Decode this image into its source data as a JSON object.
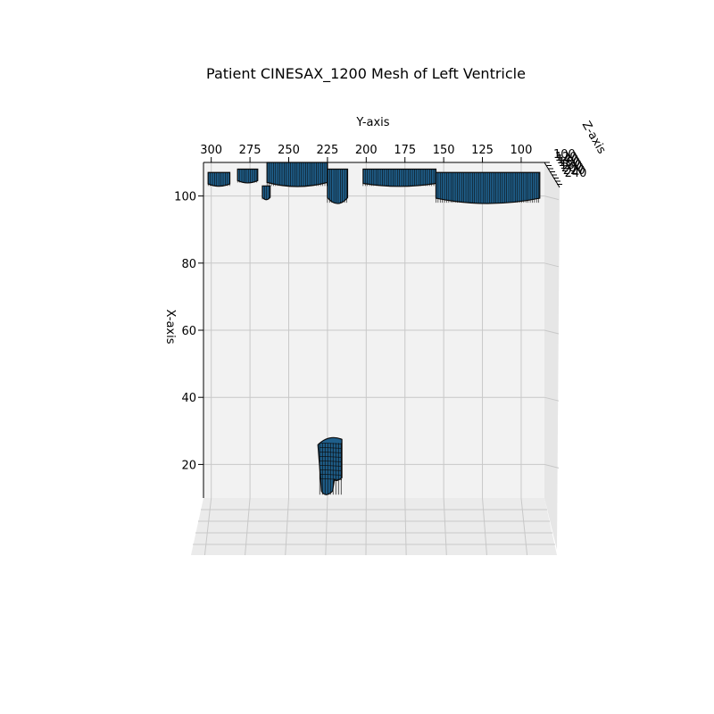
{
  "chart_data": {
    "type": "surface3d",
    "title": "Patient CINESAX_1200 Mesh of Left Ventricle",
    "xlabel": "X-axis",
    "ylabel": "Y-axis",
    "zlabel": "Z-axis",
    "x_ticks": [
      "20",
      "40",
      "60",
      "80",
      "100"
    ],
    "y_ticks": [
      "300",
      "275",
      "250",
      "225",
      "200",
      "175",
      "150",
      "125",
      "100"
    ],
    "z_ticks": [
      "100",
      "120",
      "140",
      "160",
      "180",
      "200",
      "220",
      "240"
    ],
    "x_range": [
      10,
      110
    ],
    "y_range": [
      85,
      305
    ],
    "grid": true,
    "colors": {
      "mesh_face": "#1f5f8b",
      "mesh_edge": "#0a0a0a",
      "pane": "#f2f2f2",
      "grid": "#c8c8c8"
    },
    "mesh_segments": [
      {
        "kind": "top-band",
        "y": [
          302,
          288
        ],
        "x_top": 107,
        "x_bottom": 103
      },
      {
        "kind": "top-band",
        "y": [
          283,
          270
        ],
        "x_top": 108,
        "x_bottom": 104
      },
      {
        "kind": "top-band",
        "y": [
          267,
          262
        ],
        "x_top": 103,
        "x_bottom": 99
      },
      {
        "kind": "top-band",
        "y": [
          264,
          225
        ],
        "x_top": 110,
        "x_bottom": 103
      },
      {
        "kind": "top-band",
        "y": [
          225,
          212
        ],
        "x_top": 108,
        "x_bottom": 98
      },
      {
        "kind": "top-band",
        "y": [
          202,
          155
        ],
        "x_top": 108,
        "x_bottom": 103
      },
      {
        "kind": "top-band",
        "y": [
          155,
          88
        ],
        "x_top": 107,
        "x_bottom": 98
      },
      {
        "kind": "blob",
        "y": [
          230,
          218
        ],
        "x_top": 28,
        "x_bottom": 11
      }
    ]
  }
}
